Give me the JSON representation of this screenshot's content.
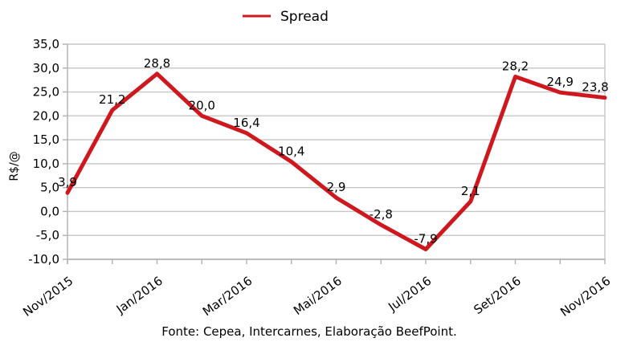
{
  "chart_data": {
    "type": "line",
    "legend": "Spread",
    "ylabel": "R$/@",
    "source": "Fonte: Cepea, Intercarnes, Elaboração BeefPoint.",
    "categories": [
      "Nov/2015",
      "",
      "Jan/2016",
      "",
      "Mar/2016",
      "",
      "Mai/2016",
      "",
      "Jul/2016",
      "",
      "Set/2016",
      "",
      "Nov/2016"
    ],
    "values": [
      3.9,
      21.2,
      28.8,
      20.0,
      16.4,
      10.4,
      2.9,
      -2.8,
      -7.9,
      2.1,
      28.2,
      24.9,
      23.8
    ],
    "point_labels": [
      "3,9",
      "21,2",
      "28,8",
      "20,0",
      "16,4",
      "10,4",
      "2,9",
      "-2,8",
      "-7,9",
      "2,1",
      "28,2",
      "24,9",
      "23,8"
    ],
    "y_ticks": [
      {
        "value": 35,
        "label": "35,0"
      },
      {
        "value": 30,
        "label": "30,0"
      },
      {
        "value": 25,
        "label": "25,0"
      },
      {
        "value": 20,
        "label": "20,0"
      },
      {
        "value": 15,
        "label": "15,0"
      },
      {
        "value": 10,
        "label": "10,0"
      },
      {
        "value": 5,
        "label": "5,0"
      },
      {
        "value": 0,
        "label": "0,0"
      },
      {
        "value": -5,
        "label": "-5,0"
      },
      {
        "value": -10,
        "label": "-10,0"
      }
    ],
    "ylim": [
      -10,
      35
    ],
    "grid": true,
    "legend_position": "top-center",
    "colors": {
      "line": "#CE181E",
      "grid": "#C6C6C6",
      "axis": "#B0B0B0",
      "text": "#000000",
      "background": "#FFFFFF"
    }
  }
}
